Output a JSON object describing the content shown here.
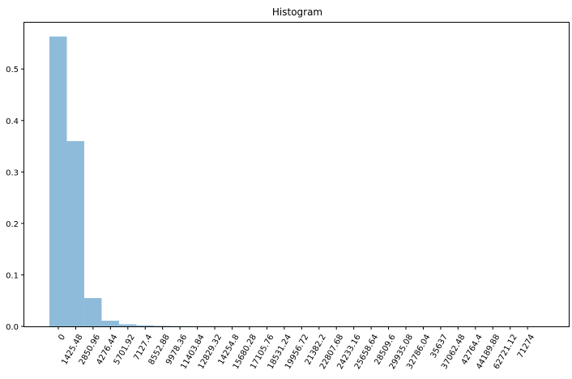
{
  "chart_data": {
    "type": "bar",
    "title": "Histogram",
    "xlabel": "",
    "ylabel": "",
    "categories": [
      "0",
      "1425.48",
      "2850.96",
      "4276.44",
      "5701.92",
      "7127.4",
      "8552.88",
      "9978.36",
      "11403.84",
      "12829.32",
      "14254.8",
      "15680.28",
      "17105.76",
      "18531.24",
      "19956.72",
      "21382.2",
      "22807.68",
      "24233.16",
      "25658.64",
      "28509.6",
      "29935.08",
      "32786.04",
      "35637",
      "37062.48",
      "42764.4",
      "44189.88",
      "62721.12",
      "71274"
    ],
    "values": [
      0.563,
      0.36,
      0.055,
      0.011,
      0.004,
      0.002,
      0.001,
      0.0005,
      0.0003,
      0.0002,
      0.00015,
      0.0001,
      0.0001,
      0.0001,
      5e-05,
      5e-05,
      5e-05,
      5e-05,
      5e-05,
      3e-05,
      3e-05,
      3e-05,
      3e-05,
      3e-05,
      2e-05,
      2e-05,
      2e-05,
      2e-05
    ],
    "yticks": [
      "0.0",
      "0.1",
      "0.2",
      "0.3",
      "0.4",
      "0.5"
    ],
    "ylim": [
      0,
      0.59
    ],
    "bar_color": "#8fbbda",
    "grid": false,
    "legend": "none"
  }
}
